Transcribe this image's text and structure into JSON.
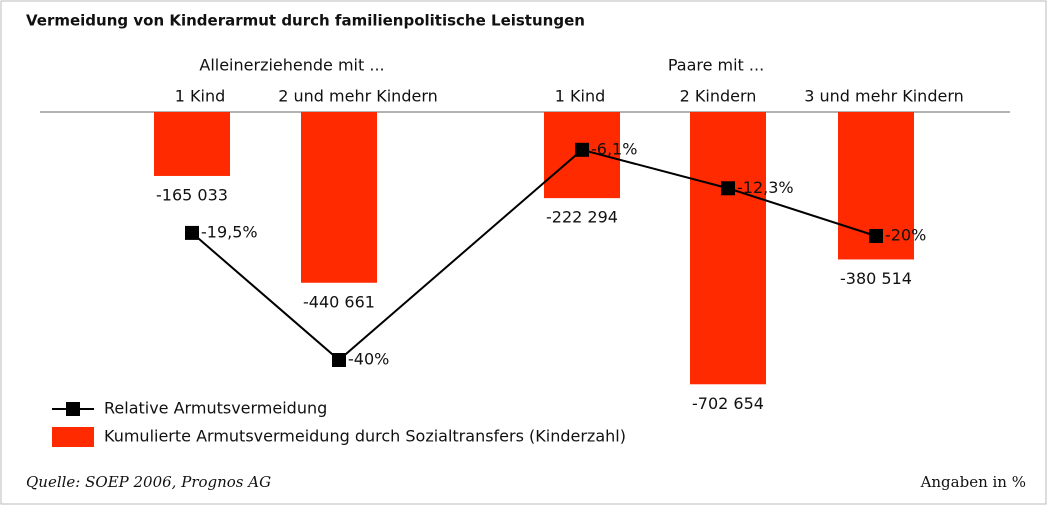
{
  "chart_data": {
    "type": "bar",
    "title": "Vermeidung von Kinderarmut durch familienpolitische Leistungen",
    "groups": [
      "Alleinerziehende mit ...",
      "Paare mit ..."
    ],
    "categories": [
      "1 Kind",
      "2 und mehr Kindern",
      "1 Kind",
      "2 Kindern",
      "3 und mehr Kindern"
    ],
    "series": [
      {
        "name": "Kumulierte Armutsvermeidung durch Sozialtransfers (Kinderzahl)",
        "type": "bar",
        "color": "#ff2a00",
        "values": [
          -165033,
          -440661,
          -222294,
          -702654,
          -380514
        ],
        "value_labels": [
          "-165 033",
          "-440 661",
          "-222 294",
          "-702 654",
          "-380 514"
        ]
      },
      {
        "name": "Relative Armutsvermeidung",
        "type": "line",
        "axis": "y2",
        "color": "#000000",
        "values": [
          -19.5,
          -40,
          -6.1,
          -12.3,
          -20
        ],
        "value_labels": [
          "-19,5%",
          "-40%",
          "-6,1%",
          "-12,3%",
          "-20%"
        ]
      }
    ],
    "ylim": [
      -800000,
      0
    ],
    "y2lim": [
      -50,
      0
    ],
    "source": "Quelle: SOEP 2006, Prognos AG",
    "note": "Angaben in %"
  }
}
